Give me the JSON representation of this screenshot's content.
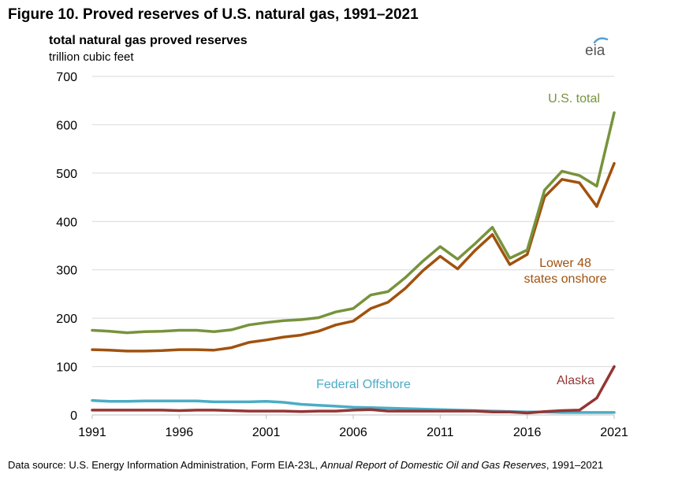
{
  "figure_title": "Figure 10. Proved reserves of U.S. natural gas, 1991–2021",
  "logo_text": "eia",
  "source": {
    "prefix": "Data source: U.S. Energy Information Administration, Form EIA-23L, ",
    "italic": "Annual Report of Domestic Oil and Gas Reserves",
    "suffix": ", 1991–2021"
  },
  "colors": {
    "us_total": "#77933C",
    "lower48": "#A0520E",
    "federal_offshore": "#4BACC6",
    "alaska": "#943634",
    "grid": "#d9d9d9",
    "logo_arc": "#5a9fd4"
  },
  "chart_data": {
    "type": "line",
    "title": "total natural gas proved reserves",
    "ylabel": "trillion cubic feet",
    "xlim": [
      1991,
      2021
    ],
    "ylim": [
      0,
      700
    ],
    "yticks": [
      "0",
      "100",
      "200",
      "300",
      "400",
      "500",
      "600",
      "700"
    ],
    "xticks": [
      "1991",
      "1996",
      "2001",
      "2006",
      "2011",
      "2016",
      "2021"
    ],
    "grid": "horizontal",
    "x": [
      1991,
      1992,
      1993,
      1994,
      1995,
      1996,
      1997,
      1998,
      1999,
      2000,
      2001,
      2002,
      2003,
      2004,
      2005,
      2006,
      2007,
      2008,
      2009,
      2010,
      2011,
      2012,
      2013,
      2014,
      2015,
      2016,
      2017,
      2018,
      2019,
      2020,
      2021
    ],
    "series": [
      {
        "name": "U.S. total",
        "key": "us_total",
        "label_lines": [
          "U.S. total"
        ],
        "values": [
          175,
          173,
          170,
          172,
          173,
          175,
          175,
          172,
          176,
          186,
          191,
          195,
          197,
          201,
          213,
          220,
          248,
          255,
          284,
          318,
          348,
          322,
          354,
          388,
          324,
          341,
          465,
          504,
          495,
          473,
          625
        ]
      },
      {
        "name": "Lower 48 states onshore",
        "key": "lower48",
        "label_lines": [
          "Lower 48",
          "states onshore"
        ],
        "values": [
          135,
          134,
          132,
          132,
          133,
          135,
          135,
          134,
          139,
          150,
          155,
          161,
          165,
          173,
          186,
          194,
          220,
          233,
          262,
          298,
          328,
          302,
          340,
          373,
          311,
          332,
          451,
          487,
          480,
          431,
          520
        ]
      },
      {
        "name": "Federal Offshore",
        "key": "federal_offshore",
        "label_lines": [
          "Federal Offshore"
        ],
        "values": [
          30,
          28,
          28,
          29,
          29,
          29,
          29,
          27,
          27,
          27,
          28,
          26,
          22,
          20,
          18,
          16,
          15,
          14,
          13,
          12,
          11,
          10,
          9,
          8,
          7,
          6,
          6,
          5,
          5,
          5,
          5
        ]
      },
      {
        "name": "Alaska",
        "key": "alaska",
        "label_lines": [
          "Alaska"
        ],
        "values": [
          10,
          10,
          10,
          10,
          10,
          9,
          10,
          10,
          9,
          8,
          8,
          8,
          7,
          8,
          8,
          10,
          11,
          8,
          8,
          8,
          8,
          8,
          8,
          6,
          6,
          4,
          7,
          9,
          10,
          35,
          100
        ]
      }
    ]
  }
}
